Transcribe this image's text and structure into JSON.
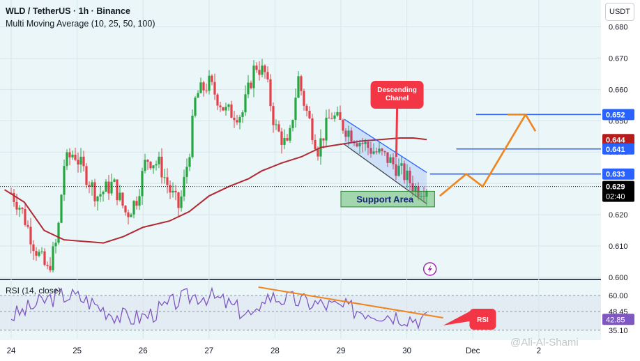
{
  "header": {
    "title": "WLD / TetherUS · 1h · Binance",
    "indicator": "Multi Moving Average (10, 25, 50, 100)"
  },
  "currency_button": "USDT",
  "watermark": "@Ali-Al-Shami",
  "chart_data": {
    "type": "candlestick",
    "price_axis": {
      "ticks": [
        "0.680",
        "0.670",
        "0.660",
        "0.650",
        "0.640",
        "0.630",
        "0.620",
        "0.610",
        "0.600"
      ],
      "ylim": [
        0.6,
        0.681
      ]
    },
    "time_axis": {
      "ticks": [
        "24",
        "25",
        "26",
        "27",
        "28",
        "29",
        "30",
        "Dec",
        "2"
      ]
    },
    "price_badges": [
      {
        "value": "0.652",
        "color": "#2962ff"
      },
      {
        "value": "0.644",
        "color": "#b71c1c"
      },
      {
        "value": "0.641",
        "color": "#2962ff"
      },
      {
        "value": "0.633",
        "color": "#2962ff"
      },
      {
        "value": "0.629",
        "color": "#000000",
        "sub": "02:40"
      }
    ],
    "annotations": {
      "descending": "Descending\nChanel",
      "support": "Support Area",
      "rsi": "RSI"
    },
    "resistance_levels": [
      0.652,
      0.641,
      0.633
    ],
    "current_price": 0.629,
    "projection": [
      [
        30.5,
        0.626
      ],
      [
        30.9,
        0.633
      ],
      [
        31.15,
        0.629
      ],
      [
        31.8,
        0.652
      ],
      [
        31.95,
        0.648
      ]
    ],
    "ma_line": [
      [
        23.9,
        0.628
      ],
      [
        24.2,
        0.624
      ],
      [
        24.5,
        0.615
      ],
      [
        24.8,
        0.612
      ],
      [
        25.1,
        0.6115
      ],
      [
        25.4,
        0.611
      ],
      [
        25.7,
        0.613
      ],
      [
        26.0,
        0.616
      ],
      [
        26.4,
        0.618
      ],
      [
        26.7,
        0.621
      ],
      [
        27.0,
        0.626
      ],
      [
        27.3,
        0.629
      ],
      [
        27.6,
        0.6315
      ],
      [
        27.8,
        0.634
      ],
      [
        28.1,
        0.6365
      ],
      [
        28.4,
        0.6385
      ],
      [
        28.7,
        0.6415
      ],
      [
        29.0,
        0.6425
      ],
      [
        29.3,
        0.6435
      ],
      [
        29.6,
        0.644
      ],
      [
        29.9,
        0.6445
      ],
      [
        30.1,
        0.6445
      ],
      [
        30.3,
        0.644
      ]
    ],
    "rsi": {
      "label": "RSI (14, close)",
      "ticks": [
        "60.00",
        "48.45",
        "35.10"
      ],
      "current": "42.85",
      "ylim": [
        30,
        70
      ]
    }
  }
}
